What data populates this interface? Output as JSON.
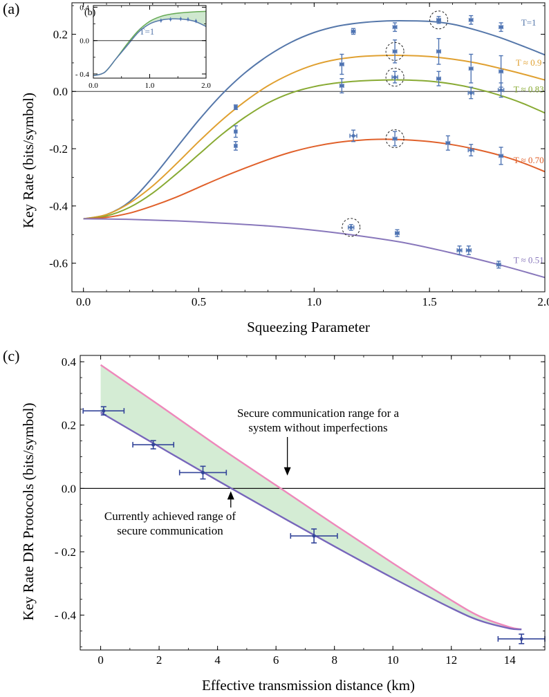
{
  "panels": {
    "a_label": "(a)",
    "b_label": "(b)",
    "c_label": "(c)"
  },
  "chart_data": [
    {
      "id": "a",
      "type": "line",
      "title": "",
      "xlabel": "Squeezing Parameter",
      "ylabel": "Key Rate (bits/symbol)",
      "xlim": [
        -0.05,
        2.0
      ],
      "ylim": [
        -0.7,
        0.31
      ],
      "xticks": [
        0.0,
        0.5,
        1.0,
        1.5,
        2.0
      ],
      "xtick_labels": [
        "0.0",
        "0.5",
        "1.0",
        "1.5",
        "2.0"
      ],
      "yticks": [
        -0.6,
        -0.4,
        -0.2,
        0.0,
        0.2
      ],
      "ytick_labels": [
        "-0.6",
        "-0.4",
        "-0.2",
        "0.0",
        "0.2"
      ],
      "reference_line_y": 0.0,
      "series": [
        {
          "name": "T=1",
          "color": "#5577aa",
          "curve": {
            "x": [
              0.0,
              0.1,
              0.2,
              0.3,
              0.4,
              0.5,
              0.6,
              0.7,
              0.8,
              0.9,
              1.0,
              1.1,
              1.2,
              1.3,
              1.4,
              1.5,
              1.6,
              1.7,
              1.8,
              1.9,
              2.0
            ],
            "y": [
              -0.445,
              -0.43,
              -0.385,
              -0.3,
              -0.2,
              -0.1,
              -0.01,
              0.065,
              0.125,
              0.172,
              0.206,
              0.228,
              0.24,
              0.246,
              0.247,
              0.245,
              0.235,
              0.215,
              0.19,
              0.16,
              0.128
            ]
          },
          "points": [
            {
              "x": 0.66,
              "y": -0.055,
              "xerr": 0.006,
              "yerr": 0.008
            },
            {
              "x": 1.17,
              "y": 0.21,
              "xerr": 0.008,
              "yerr": 0.01
            },
            {
              "x": 1.35,
              "y": 0.225,
              "xerr": 0.008,
              "yerr": 0.015
            },
            {
              "x": 1.54,
              "y": 0.25,
              "xerr": 0.008,
              "yerr": 0.012
            },
            {
              "x": 1.68,
              "y": 0.25,
              "xerr": 0.008,
              "yerr": 0.015
            },
            {
              "x": 1.81,
              "y": 0.225,
              "xerr": 0.008,
              "yerr": 0.015
            }
          ]
        },
        {
          "name": "T ≈ 0.9",
          "color": "#e0a030",
          "curve": {
            "x": [
              0.0,
              0.1,
              0.2,
              0.3,
              0.4,
              0.5,
              0.6,
              0.7,
              0.8,
              0.9,
              1.0,
              1.1,
              1.2,
              1.3,
              1.4,
              1.5,
              1.6,
              1.7,
              1.8,
              1.9,
              2.0
            ],
            "y": [
              -0.445,
              -0.43,
              -0.39,
              -0.33,
              -0.255,
              -0.175,
              -0.1,
              -0.035,
              0.02,
              0.062,
              0.093,
              0.112,
              0.122,
              0.126,
              0.126,
              0.122,
              0.113,
              0.1,
              0.082,
              0.062,
              0.04
            ]
          },
          "points": [
            {
              "x": 0.66,
              "y": -0.14,
              "xerr": 0.006,
              "yerr": 0.02
            },
            {
              "x": 1.12,
              "y": 0.095,
              "xerr": 0.008,
              "yerr": 0.035
            },
            {
              "x": 1.35,
              "y": 0.14,
              "xerr": 0.008,
              "yerr": 0.04
            },
            {
              "x": 1.54,
              "y": 0.14,
              "xerr": 0.008,
              "yerr": 0.045
            },
            {
              "x": 1.68,
              "y": 0.08,
              "xerr": 0.008,
              "yerr": 0.05
            },
            {
              "x": 1.81,
              "y": 0.07,
              "xerr": 0.008,
              "yerr": 0.055
            }
          ]
        },
        {
          "name": "T ≈ 0.83",
          "color": "#88aa33",
          "curve": {
            "x": [
              0.0,
              0.1,
              0.2,
              0.3,
              0.4,
              0.5,
              0.6,
              0.7,
              0.8,
              0.9,
              1.0,
              1.1,
              1.2,
              1.3,
              1.4,
              1.5,
              1.6,
              1.7,
              1.8,
              1.9,
              2.0
            ],
            "y": [
              -0.445,
              -0.435,
              -0.405,
              -0.355,
              -0.29,
              -0.22,
              -0.15,
              -0.09,
              -0.04,
              -0.005,
              0.017,
              0.03,
              0.037,
              0.04,
              0.04,
              0.036,
              0.026,
              0.01,
              -0.012,
              -0.04,
              -0.075
            ]
          },
          "points": [
            {
              "x": 0.66,
              "y": -0.19,
              "xerr": 0.006,
              "yerr": 0.015
            },
            {
              "x": 1.12,
              "y": 0.02,
              "xerr": 0.008,
              "yerr": 0.025
            },
            {
              "x": 1.35,
              "y": 0.05,
              "xerr": 0.012,
              "yerr": 0.02
            },
            {
              "x": 1.54,
              "y": 0.045,
              "xerr": 0.008,
              "yerr": 0.025
            },
            {
              "x": 1.68,
              "y": -0.005,
              "xerr": 0.012,
              "yerr": 0.02
            },
            {
              "x": 1.81,
              "y": 0.005,
              "xerr": 0.012,
              "yerr": 0.025
            }
          ]
        },
        {
          "name": "T ≈ 0.70",
          "color": "#e0602a",
          "curve": {
            "x": [
              0.0,
              0.1,
              0.2,
              0.3,
              0.4,
              0.5,
              0.6,
              0.7,
              0.8,
              0.9,
              1.0,
              1.1,
              1.2,
              1.3,
              1.4,
              1.5,
              1.6,
              1.7,
              1.8,
              1.9,
              2.0
            ],
            "y": [
              -0.445,
              -0.44,
              -0.425,
              -0.4,
              -0.37,
              -0.335,
              -0.3,
              -0.268,
              -0.238,
              -0.212,
              -0.192,
              -0.178,
              -0.17,
              -0.167,
              -0.169,
              -0.175,
              -0.186,
              -0.202,
              -0.222,
              -0.248,
              -0.28
            ]
          },
          "points": [
            {
              "x": 1.17,
              "y": -0.155,
              "xerr": 0.015,
              "yerr": 0.02
            },
            {
              "x": 1.35,
              "y": -0.165,
              "xerr": 0.008,
              "yerr": 0.025
            },
            {
              "x": 1.58,
              "y": -0.18,
              "xerr": 0.008,
              "yerr": 0.025
            },
            {
              "x": 1.68,
              "y": -0.205,
              "xerr": 0.012,
              "yerr": 0.02
            },
            {
              "x": 1.81,
              "y": -0.225,
              "xerr": 0.008,
              "yerr": 0.03
            }
          ]
        },
        {
          "name": "T ≈ 0.51",
          "color": "#8877bb",
          "curve": {
            "x": [
              0.0,
              0.2,
              0.4,
              0.6,
              0.8,
              1.0,
              1.2,
              1.4,
              1.6,
              1.8,
              2.0
            ],
            "y": [
              -0.445,
              -0.447,
              -0.452,
              -0.46,
              -0.47,
              -0.485,
              -0.505,
              -0.53,
              -0.565,
              -0.605,
              -0.65
            ]
          },
          "points": [
            {
              "x": 1.16,
              "y": -0.475,
              "xerr": 0.012,
              "yerr": 0.01
            },
            {
              "x": 1.36,
              "y": -0.495,
              "xerr": 0.008,
              "yerr": 0.012
            },
            {
              "x": 1.63,
              "y": -0.555,
              "xerr": 0.01,
              "yerr": 0.015
            },
            {
              "x": 1.67,
              "y": -0.555,
              "xerr": 0.01,
              "yerr": 0.015
            },
            {
              "x": 1.8,
              "y": -0.605,
              "xerr": 0.008,
              "yerr": 0.012
            }
          ]
        }
      ],
      "circled_points": [
        {
          "x": 1.54,
          "y": 0.25
        },
        {
          "x": 1.35,
          "y": 0.14
        },
        {
          "x": 1.35,
          "y": 0.05
        },
        {
          "x": 1.35,
          "y": -0.165
        },
        {
          "x": 1.16,
          "y": -0.475
        }
      ]
    },
    {
      "id": "b",
      "type": "area",
      "title": "",
      "xlim": [
        0.0,
        2.0
      ],
      "ylim": [
        -0.45,
        0.42
      ],
      "xticks": [
        0.0,
        1.0,
        2.0
      ],
      "xtick_labels": [
        "0.0",
        "1.0",
        "2.0"
      ],
      "yticks": [
        -0.4,
        0.0,
        0.4
      ],
      "ytick_labels": [
        "- 0.4",
        "0.0",
        "0.4"
      ],
      "reference_line_y": 0.0,
      "fill_color": "#cfe8cf",
      "series": [
        {
          "name": "T=1",
          "color": "#5577aa",
          "curve": {
            "x": [
              0.0,
              0.2,
              0.4,
              0.6,
              0.8,
              1.0,
              1.2,
              1.4,
              1.6,
              1.8,
              2.0
            ],
            "y": [
              -0.42,
              -0.38,
              -0.22,
              -0.06,
              0.1,
              0.2,
              0.245,
              0.26,
              0.255,
              0.23,
              0.17
            ]
          },
          "upper_curve": {
            "x": [
              0.0,
              0.2,
              0.4,
              0.6,
              0.8,
              1.0,
              1.2,
              1.4,
              1.6,
              1.8,
              2.0
            ],
            "y": [
              -0.42,
              -0.38,
              -0.22,
              -0.04,
              0.12,
              0.23,
              0.29,
              0.32,
              0.335,
              0.345,
              0.35
            ]
          },
          "points": [
            {
              "x": 1.2,
              "y": 0.24
            },
            {
              "x": 1.37,
              "y": 0.255
            },
            {
              "x": 1.55,
              "y": 0.26
            },
            {
              "x": 1.68,
              "y": 0.255
            },
            {
              "x": 1.82,
              "y": 0.235
            }
          ]
        }
      ]
    },
    {
      "id": "c",
      "type": "area",
      "title": "",
      "xlabel": "Effective transmission distance (km)",
      "ylabel": "Key Rate DR Protocols (bits/symbol)",
      "xlim": [
        -0.7,
        15.2
      ],
      "ylim": [
        -0.51,
        0.42
      ],
      "xticks": [
        0,
        2,
        4,
        6,
        8,
        10,
        12,
        14
      ],
      "xtick_labels": [
        "0",
        "2",
        "4",
        "6",
        "8",
        "10",
        "12",
        "14"
      ],
      "yticks": [
        -0.4,
        -0.2,
        0.0,
        0.2,
        0.4
      ],
      "ytick_labels": [
        "- 0.4",
        "- 0.2",
        "0.0",
        "0.2",
        "0.4"
      ],
      "reference_line_y": 0.0,
      "fill_color": "#d4ecd4",
      "upper_curve": {
        "color": "#ee88bb",
        "x": [
          0.0,
          2.0,
          4.0,
          6.0,
          8.0,
          10.0,
          12.0,
          13.0,
          14.0,
          14.4
        ],
        "y": [
          0.39,
          0.263,
          0.134,
          0.01,
          -0.114,
          -0.236,
          -0.353,
          -0.405,
          -0.438,
          -0.445
        ]
      },
      "lower_curve": {
        "color": "#7766bb",
        "x": [
          0.0,
          2.0,
          4.0,
          6.0,
          8.0,
          10.0,
          12.0,
          13.0,
          14.0,
          14.4
        ],
        "y": [
          0.24,
          0.132,
          0.025,
          -0.08,
          -0.183,
          -0.283,
          -0.378,
          -0.418,
          -0.442,
          -0.445
        ]
      },
      "points": [
        {
          "x": 0.1,
          "y": 0.245,
          "xerr": 0.7,
          "yerr": 0.013
        },
        {
          "x": 1.8,
          "y": 0.138,
          "xerr": 0.7,
          "yerr": 0.013
        },
        {
          "x": 3.5,
          "y": 0.05,
          "xerr": 0.8,
          "yerr": 0.02
        },
        {
          "x": 7.3,
          "y": -0.15,
          "xerr": 0.8,
          "yerr": 0.022
        },
        {
          "x": 14.4,
          "y": -0.475,
          "xerr": 0.8,
          "yerr": 0.015
        }
      ],
      "point_color": "#334499",
      "annotations": [
        {
          "lines": [
            "Secure communication range for a",
            "system without imperfections"
          ],
          "arrow_to": {
            "x": 6.2,
            "y": 0.01
          }
        },
        {
          "lines": [
            "Currently achieved range of",
            "secure communication"
          ],
          "arrow_to": {
            "x": 4.5,
            "y": 0.0
          }
        }
      ]
    }
  ]
}
